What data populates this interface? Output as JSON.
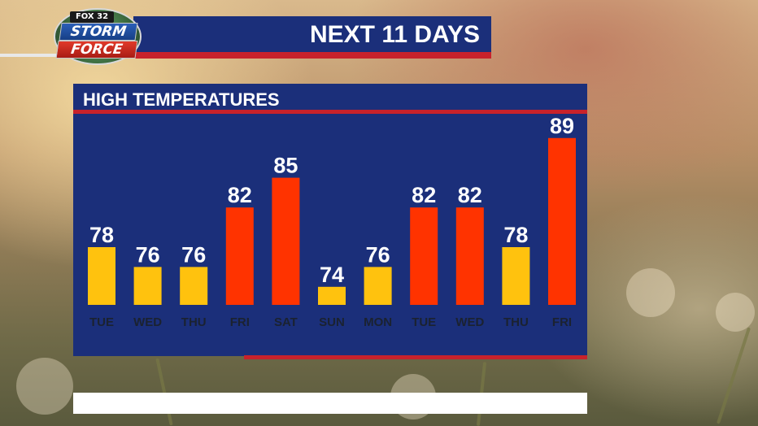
{
  "header": {
    "logo_top": "FOX 32",
    "logo_line1": "STORM",
    "logo_line2": "FORCE",
    "title": "NEXT 11 DAYS"
  },
  "panel": {
    "title": "HIGH TEMPERATURES"
  },
  "colors": {
    "navy": "#1b2f7a",
    "accent_red": "#c8222b",
    "bar_warm": "#ffc20e",
    "bar_hot": "#ff3300"
  },
  "chart_data": {
    "type": "bar",
    "title": "HIGH TEMPERATURES",
    "categories": [
      "TUE",
      "WED",
      "THU",
      "FRI",
      "SAT",
      "SUN",
      "MON",
      "TUE",
      "WED",
      "THU",
      "FRI"
    ],
    "values": [
      78,
      76,
      76,
      82,
      85,
      74,
      76,
      82,
      82,
      78,
      89
    ],
    "bar_colors": [
      "#ffc20e",
      "#ffc20e",
      "#ffc20e",
      "#ff3300",
      "#ff3300",
      "#ffc20e",
      "#ffc20e",
      "#ff3300",
      "#ff3300",
      "#ffc20e",
      "#ff3300"
    ],
    "data_labels": [
      "78",
      "76",
      "76",
      "82",
      "85",
      "74",
      "76",
      "82",
      "82",
      "78",
      "89"
    ],
    "ylim": [
      70,
      90
    ],
    "grid": false,
    "legend": "none"
  }
}
